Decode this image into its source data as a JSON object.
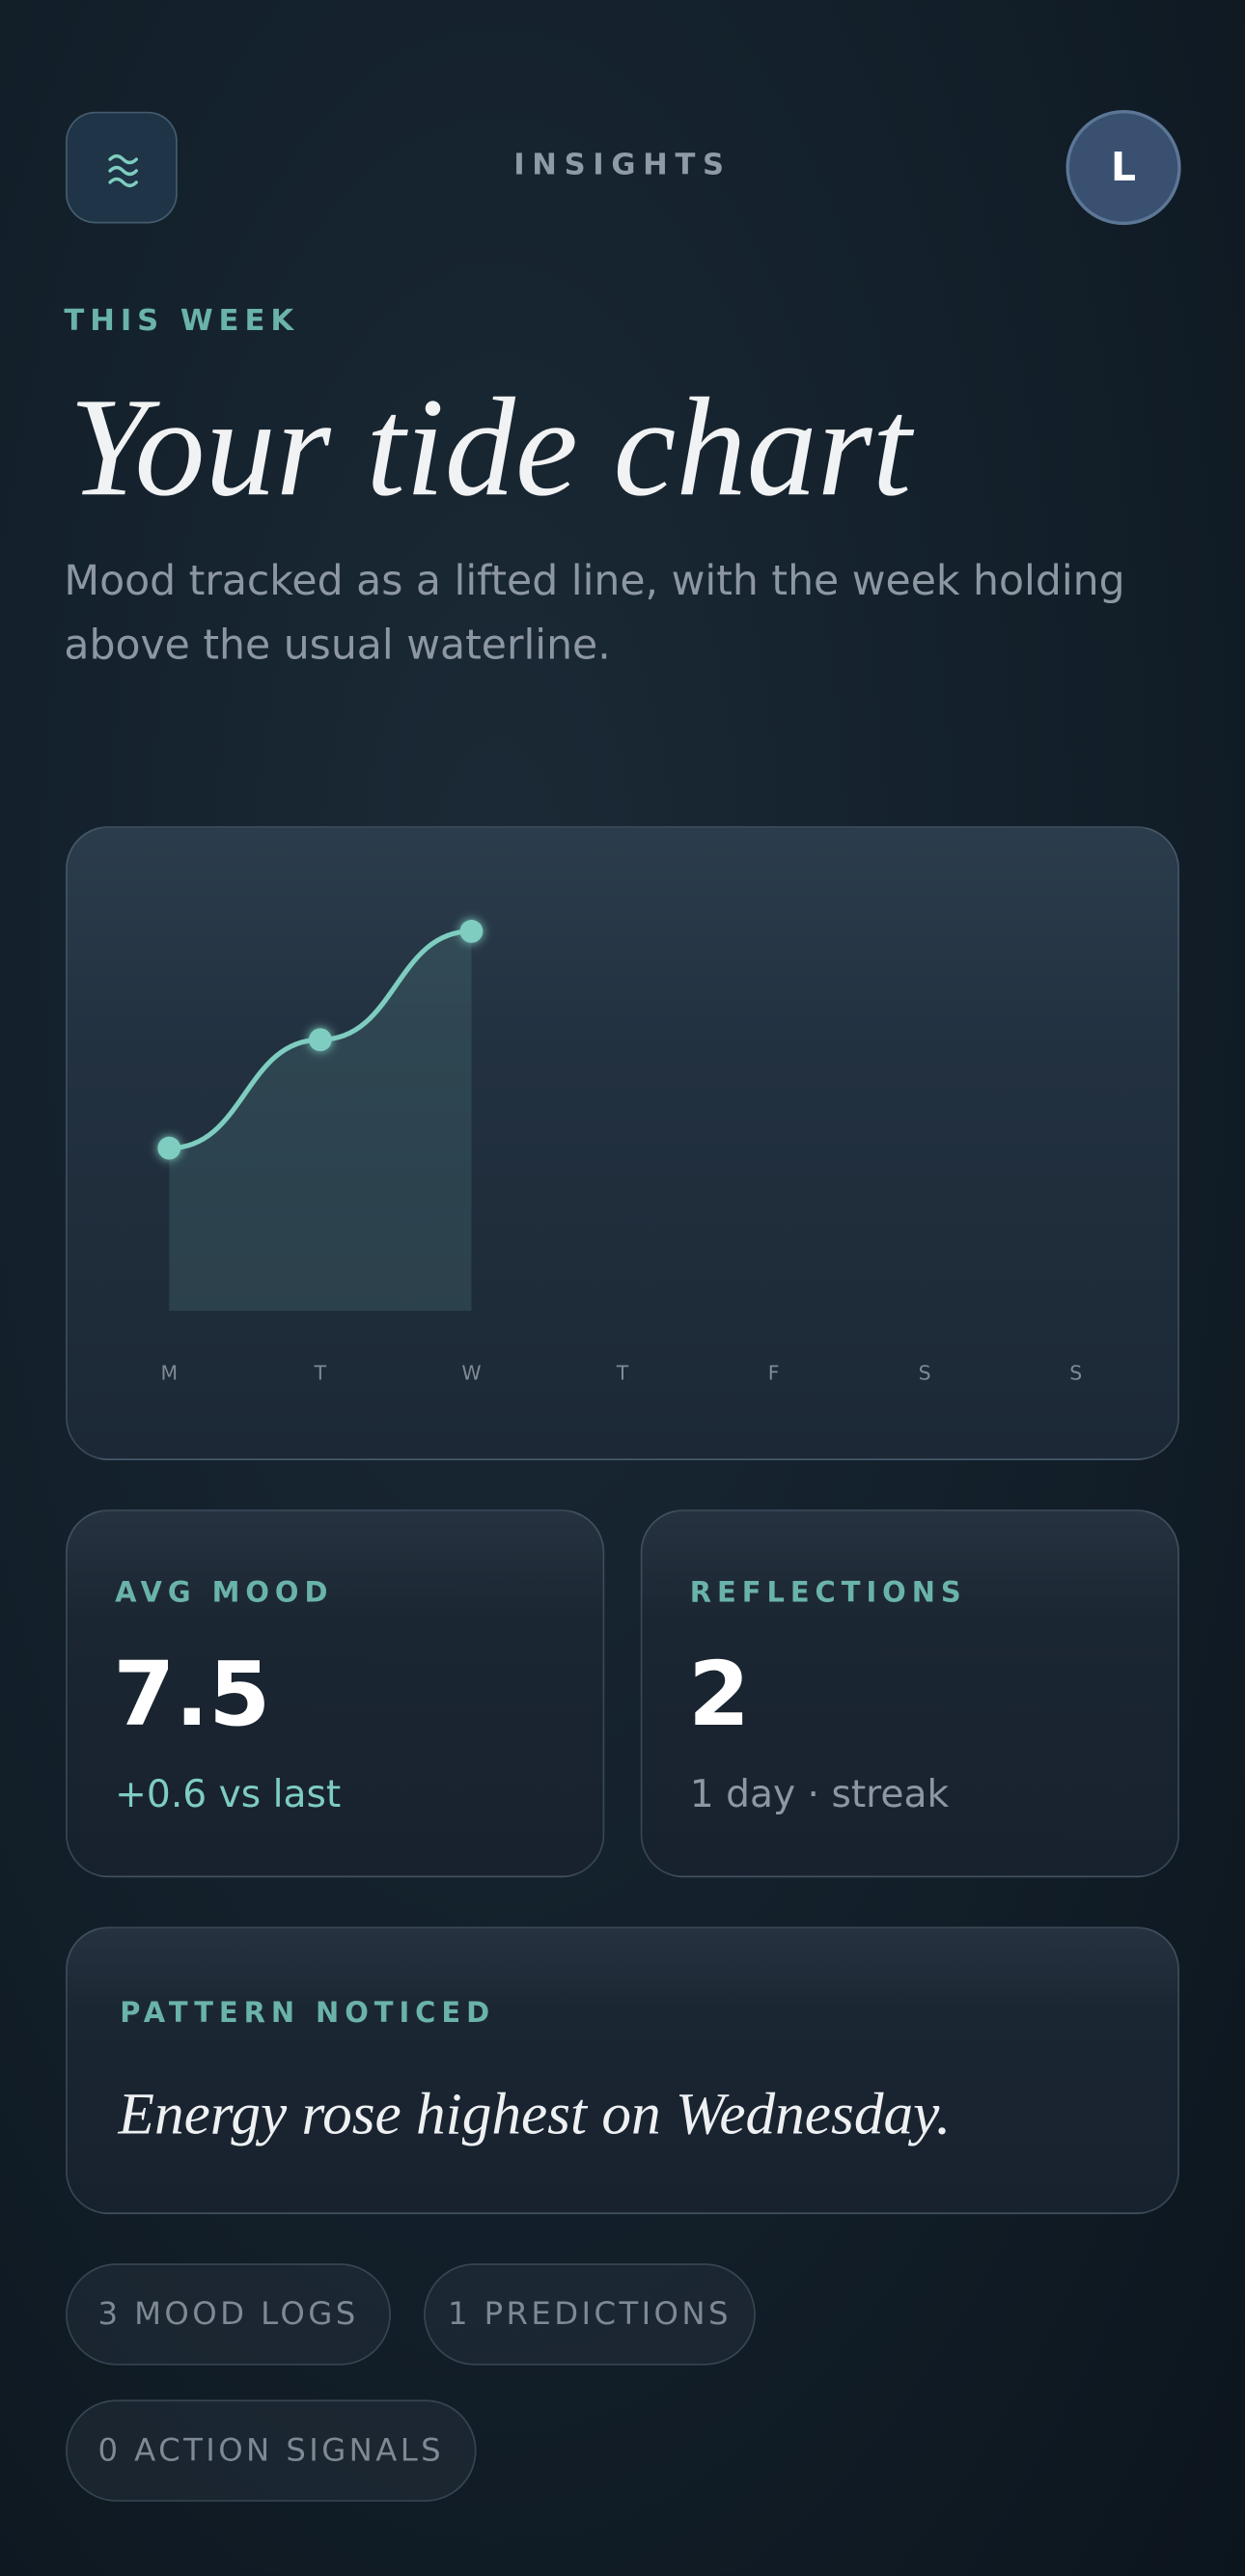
{
  "header": {
    "title": "INSIGHTS",
    "avatar": "L"
  },
  "hero": {
    "eyebrow": "THIS WEEK",
    "title": "Your tide chart",
    "subtitle": "Mood tracked as a lifted line, with the week holding above the usual waterline."
  },
  "chart_data": {
    "type": "line",
    "categories": [
      "M",
      "T",
      "W",
      "T",
      "F",
      "S",
      "S"
    ],
    "values": [
      6.5,
      7.5,
      8.5,
      null,
      null,
      null,
      null
    ],
    "color": "#7ecdc0",
    "ylim": [
      5,
      9
    ]
  },
  "stats": [
    {
      "label": "AVG MOOD",
      "value": 7.5,
      "note": "+0.6 vs last"
    },
    {
      "label": "REFLECTIONS",
      "value": 2,
      "note": "1 day · streak"
    }
  ],
  "pattern": {
    "label": "PATTERN NOTICED",
    "text": "Energy rose highest on Wednesday."
  },
  "chips": [
    "3 MOOD LOGS",
    "1 PREDICTIONS",
    "0 ACTION SIGNALS"
  ]
}
